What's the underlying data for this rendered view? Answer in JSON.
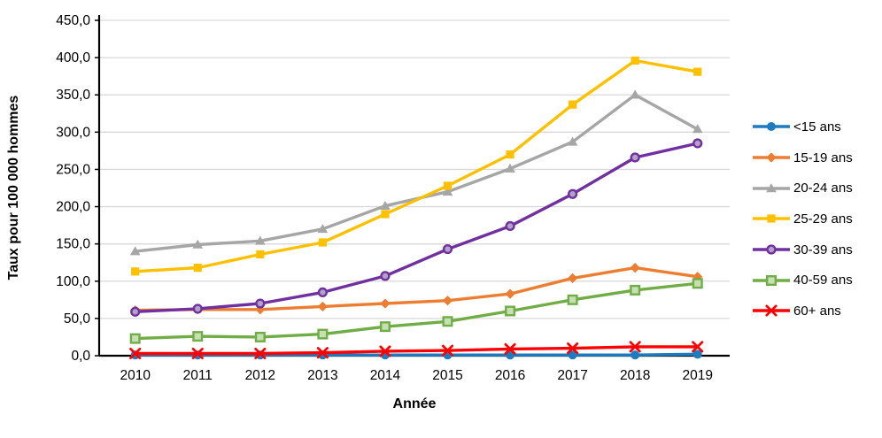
{
  "chart_data": {
    "type": "line",
    "title": "",
    "xlabel": "Année",
    "ylabel": "Taux pour 100 000 hommes",
    "categories": [
      "2010",
      "2011",
      "2012",
      "2013",
      "2014",
      "2015",
      "2016",
      "2017",
      "2018",
      "2019"
    ],
    "ylim": [
      0,
      450
    ],
    "ytick_interval": 50,
    "ytick_labels": [
      "0,0",
      "50,0",
      "100,0",
      "150,0",
      "200,0",
      "250,0",
      "300,0",
      "350,0",
      "400,0",
      "450,0"
    ],
    "grid": true,
    "legend_position": "right",
    "gridline_color": "#d9d9d9",
    "axis_color": "#000000",
    "series": [
      {
        "name": "<15 ans",
        "color": "#1f7bc0",
        "marker": "circle",
        "values": [
          1,
          1,
          1,
          1,
          1,
          1,
          1,
          1,
          1,
          2
        ]
      },
      {
        "name": "15-19 ans",
        "color": "#ed7d31",
        "marker": "diamond",
        "values": [
          61,
          62,
          62,
          66,
          70,
          74,
          83,
          104,
          118,
          106
        ]
      },
      {
        "name": "20-24 ans",
        "color": "#a6a6a6",
        "marker": "triangle",
        "values": [
          140,
          149,
          154,
          170,
          201,
          220,
          251,
          287,
          350,
          304
        ]
      },
      {
        "name": "25-29 ans",
        "color": "#ffc000",
        "marker": "square",
        "values": [
          113,
          118,
          136,
          152,
          190,
          228,
          270,
          337,
          396,
          381
        ]
      },
      {
        "name": "30-39 ans",
        "color": "#7030a0",
        "marker": "circle-open",
        "marker_fill": "#b3a2c7",
        "values": [
          59,
          63,
          70,
          85,
          107,
          143,
          174,
          217,
          266,
          285
        ]
      },
      {
        "name": "40-59 ans",
        "color": "#70ad47",
        "marker": "square-open",
        "marker_fill": "#c6e0b4",
        "values": [
          23,
          26,
          25,
          29,
          39,
          46,
          60,
          75,
          88,
          97
        ]
      },
      {
        "name": "60+ ans",
        "color": "#ff0000",
        "marker": "x",
        "values": [
          3,
          3,
          3,
          4,
          6,
          7,
          9,
          10,
          12,
          12
        ]
      }
    ]
  }
}
